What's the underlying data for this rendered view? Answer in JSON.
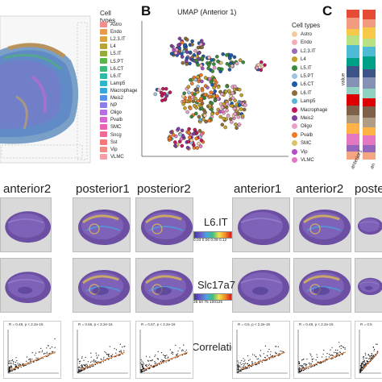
{
  "panel_letters": {
    "b": "B",
    "c": "C"
  },
  "panel_a": {
    "legend_title": "Cell types",
    "items": [
      {
        "label": "Astro",
        "color": "#f28e8e"
      },
      {
        "label": "Endo",
        "color": "#e89a4e"
      },
      {
        "label": "L2.3.IT",
        "color": "#d9a441"
      },
      {
        "label": "L4",
        "color": "#b8a338"
      },
      {
        "label": "L5.IT",
        "color": "#93ab38"
      },
      {
        "label": "L5.PT",
        "color": "#5bb548"
      },
      {
        "label": "L6.CT",
        "color": "#3dba7a"
      },
      {
        "label": "L6.IT",
        "color": "#2ebba6"
      },
      {
        "label": "Lamp5",
        "color": "#2cb6c6"
      },
      {
        "label": "Macrophage",
        "color": "#36a8dc"
      },
      {
        "label": "Meis2",
        "color": "#5990e8"
      },
      {
        "label": "NP",
        "color": "#8a7ee9"
      },
      {
        "label": "Oligo",
        "color": "#b46fe2"
      },
      {
        "label": "Pvalb",
        "color": "#d666cf"
      },
      {
        "label": "SMC",
        "color": "#ea62b2"
      },
      {
        "label": "Sncg",
        "color": "#f26896"
      },
      {
        "label": "Sst",
        "color": "#f47679"
      },
      {
        "label": "Vip",
        "color": "#f08a85"
      },
      {
        "label": "VLMC",
        "color": "#f4a0a6"
      }
    ]
  },
  "panel_b": {
    "title": "UMAP (Anterior 1)",
    "legend_title": "Cell types",
    "items": [
      {
        "label": "Astro",
        "color": "#f0cda0"
      },
      {
        "label": "Endo",
        "color": "#f2b0b6"
      },
      {
        "label": "L2.3.IT",
        "color": "#9b6bb8"
      },
      {
        "label": "L4",
        "color": "#c4a12f"
      },
      {
        "label": "L5.IT",
        "color": "#3b8a3e"
      },
      {
        "label": "L5.PT",
        "color": "#9fc3e0"
      },
      {
        "label": "L6.CT",
        "color": "#1e5aa8"
      },
      {
        "label": "L6.IT",
        "color": "#8c6d3a"
      },
      {
        "label": "Lamp5",
        "color": "#5ab4d6"
      },
      {
        "label": "Macrophage",
        "color": "#c2185b"
      },
      {
        "label": "Meis2",
        "color": "#7b3fa0"
      },
      {
        "label": "Oligo",
        "color": "#e8a0c8"
      },
      {
        "label": "Pvalb",
        "color": "#f07a28"
      },
      {
        "label": "SMC",
        "color": "#d7c46a"
      },
      {
        "label": "Vip",
        "color": "#b34dc4"
      },
      {
        "label": "VLMC",
        "color": "#e377c2"
      }
    ]
  },
  "panel_c": {
    "y_label": "value",
    "x_labels": [
      "anterior1",
      "an"
    ]
  },
  "row_headers_left": [
    "anterior2",
    "posterior1",
    "posterior2"
  ],
  "row_headers_right": [
    "anterior1",
    "anterior2",
    "poste"
  ],
  "gene1": {
    "name": "L6.IT",
    "ticks": "0.03 0.06 0.09 0.12"
  },
  "gene2": {
    "name": "Slc17a7",
    "ticks": "25 50 75 100125"
  },
  "correlation_label": "Correlation",
  "corr_stats_left": [
    "R = 0.49, p < 2.2e-16",
    "R = 0.55, p < 2.2e-16",
    "R = 0.57, p < 2.2e-16"
  ],
  "corr_stats_right": [
    "R = 0.5, p < 2.2e-16",
    "R = 0.49, p < 2.2e-16",
    "R = 0.5"
  ]
}
